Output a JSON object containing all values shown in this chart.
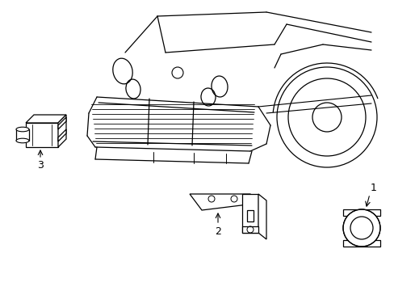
{
  "background_color": "#ffffff",
  "line_color": "#000000",
  "components": {
    "label1": "1",
    "label2": "2",
    "label3": "3"
  },
  "figure_width": 4.89,
  "figure_height": 3.6,
  "dpi": 100
}
